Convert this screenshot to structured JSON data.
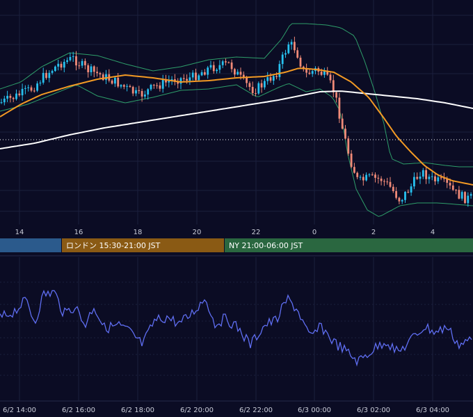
{
  "chart_data": [
    {
      "type": "candlestick",
      "x_ticks": [
        "14",
        "16",
        "18",
        "20",
        "22",
        "0",
        "2",
        "4"
      ],
      "overlays": [
        "bollinger-bands",
        "moving-average-short",
        "moving-average-long"
      ],
      "reference_line": "dotted-horizontal",
      "grid": true,
      "colors": {
        "up": "#27c1ef",
        "down": "#f08a78",
        "ma_short": "#f39a24",
        "ma_long": "#ffffff",
        "band": "#2e9e6a"
      }
    },
    {
      "type": "bar",
      "name": "sessions",
      "segments": [
        {
          "label": "",
          "color": "#2b5a8c"
        },
        {
          "label": "ロンドン 15:30-21:00 JST",
          "color": "#8a5a14"
        },
        {
          "label": "NY 21:00-06:00 JST",
          "color": "#2a6740"
        }
      ]
    },
    {
      "type": "line",
      "x_ticks": [
        "6/2 14:00",
        "6/2 16:00",
        "6/2 18:00",
        "6/2 20:00",
        "6/2 22:00",
        "6/3 00:00",
        "6/3 02:00",
        "6/3 04:00"
      ],
      "colors": {
        "line": "#5f6ef2"
      },
      "grid": true
    }
  ]
}
